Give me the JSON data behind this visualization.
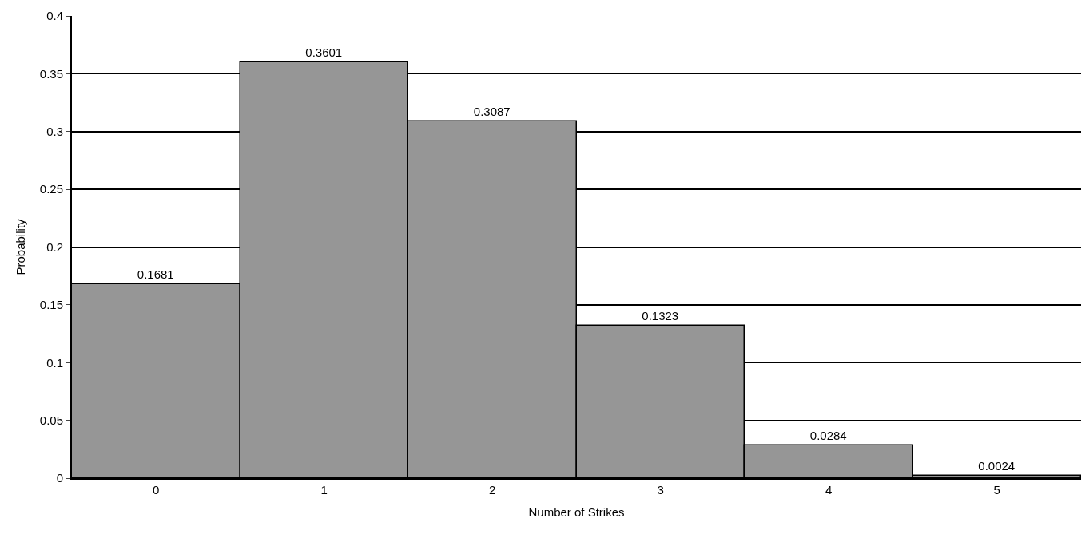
{
  "chart_data": {
    "type": "bar",
    "xlabel": "Number of Strikes",
    "ylabel": "Probability",
    "categories": [
      "0",
      "1",
      "2",
      "3",
      "4",
      "5"
    ],
    "values": [
      0.1681,
      0.3601,
      0.3087,
      0.1323,
      0.0284,
      0.0024
    ],
    "color": "#969696",
    "data_labels": true,
    "ylim": [
      0,
      0.4
    ],
    "yticks": [
      0,
      0.05,
      0.1,
      0.15,
      0.2,
      0.25,
      0.3,
      0.35,
      0.4
    ],
    "grid": "y"
  }
}
